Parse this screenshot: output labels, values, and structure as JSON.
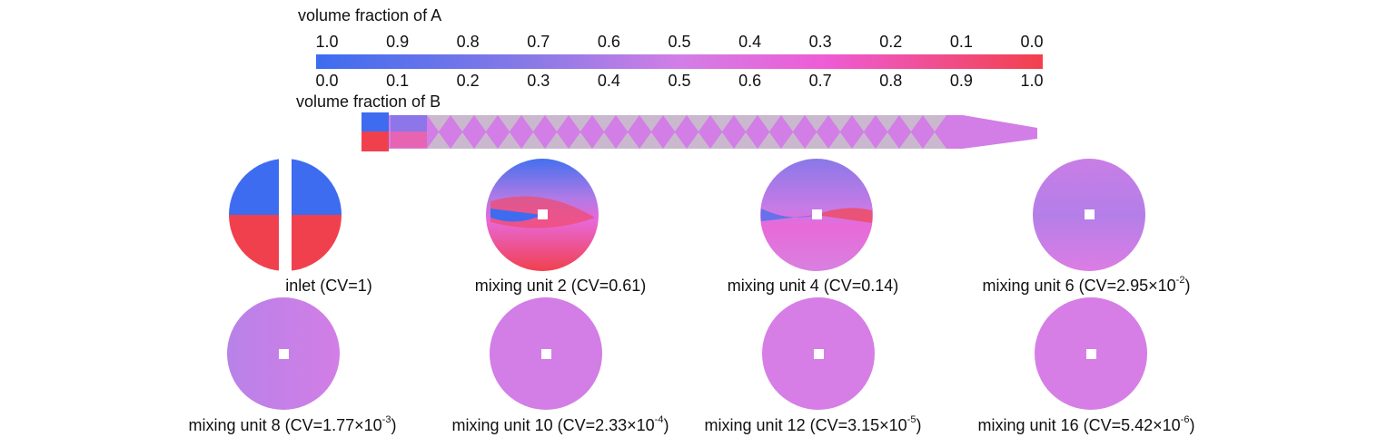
{
  "colorbar": {
    "title_a": "volume fraction of A",
    "ticks_a": [
      "1.0",
      "0.9",
      "0.8",
      "0.7",
      "0.6",
      "0.5",
      "0.4",
      "0.3",
      "0.2",
      "0.1",
      "0.0"
    ],
    "ticks_b": [
      "0.0",
      "0.1",
      "0.2",
      "0.3",
      "0.4",
      "0.5",
      "0.6",
      "0.7",
      "0.8",
      "0.9",
      "1.0"
    ],
    "title_b": "volume fraction of B"
  },
  "sections": [
    {
      "text": "inlet (CV=1)"
    },
    {
      "text": "mixing unit 2 (CV=0.61)"
    },
    {
      "text": "mixing unit 4 (CV=0.14)"
    },
    {
      "text": "mixing unit 6 (CV=2.95×10",
      "sup": "-2",
      "tail": ")"
    },
    {
      "text": "mixing unit 8 (CV=1.77×10",
      "sup": "-3",
      "tail": ")"
    },
    {
      "text": "mixing unit 10 (CV=2.33×10",
      "sup": "-4",
      "tail": ")"
    },
    {
      "text": "mixing unit 12 (CV=3.15×10",
      "sup": "-5",
      "tail": ")"
    },
    {
      "text": "mixing unit 16 (CV=5.42×10",
      "sup": "-6",
      "tail": ")"
    }
  ]
}
